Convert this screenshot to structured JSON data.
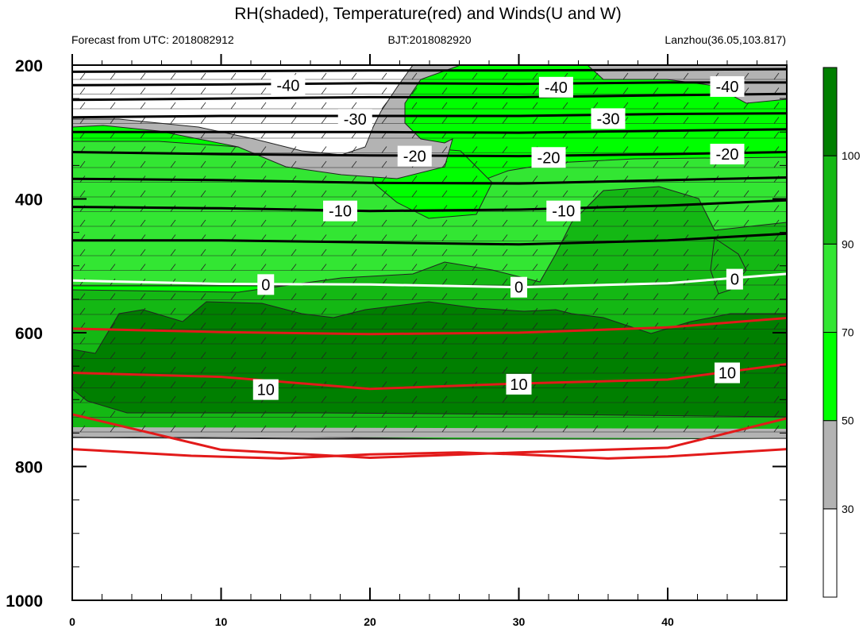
{
  "chart_data": {
    "type": "contour",
    "title": "RH(shaded), Temperature(red) and Winds(U and W)",
    "subtitle_left": "Forecast from UTC: 2018082912",
    "subtitle_center": "BJT:2018082920",
    "subtitle_right": "Lanzhou(36.05,103.817)",
    "x_range": [
      0,
      48
    ],
    "x_ticks": [
      0,
      10,
      20,
      30,
      40
    ],
    "y_range": [
      200,
      1000
    ],
    "y_ticks": [
      200,
      400,
      600,
      800,
      1000
    ],
    "y_reversed": true,
    "colorbar": {
      "levels": [
        30,
        50,
        70,
        90,
        100
      ],
      "labels": [
        "30",
        "50",
        "70",
        "90",
        "100"
      ],
      "colors": [
        "#ffffff",
        "#b3b3b3",
        "#00ff00",
        "#33e633",
        "#14b814",
        "#007f00"
      ]
    },
    "temperature_contours": [
      {
        "value": -40,
        "label": "-40",
        "color": "#000000",
        "y_points": [
          [
            0,
            210
          ],
          [
            10,
            209
          ],
          [
            20,
            208
          ],
          [
            30,
            208
          ],
          [
            40,
            207
          ],
          [
            48,
            206
          ]
        ]
      },
      {
        "value": -40,
        "label": "-40",
        "color": "#000000",
        "y_points": [
          [
            0,
            230
          ],
          [
            10,
            229
          ],
          [
            20,
            227
          ],
          [
            30,
            228
          ],
          [
            40,
            226
          ],
          [
            48,
            226
          ]
        ]
      },
      {
        "value": -40,
        "label": "-40",
        "color": "#000000",
        "y_points": [
          [
            0,
            252
          ],
          [
            10,
            250
          ],
          [
            20,
            248
          ],
          [
            30,
            248
          ],
          [
            40,
            245
          ],
          [
            48,
            243
          ]
        ]
      },
      {
        "value": -30,
        "label": "-30",
        "color": "#000000",
        "y_points": [
          [
            0,
            278
          ],
          [
            10,
            276
          ],
          [
            20,
            276
          ],
          [
            30,
            276
          ],
          [
            40,
            273
          ],
          [
            48,
            272
          ]
        ]
      },
      {
        "value": -30,
        "label": "-30",
        "color": "#000000",
        "y_points": [
          [
            0,
            300
          ],
          [
            10,
            300
          ],
          [
            20,
            300
          ],
          [
            30,
            301
          ],
          [
            40,
            298
          ],
          [
            48,
            296
          ]
        ]
      },
      {
        "value": -20,
        "label": "-20",
        "color": "#000000",
        "y_points": [
          [
            0,
            330
          ],
          [
            10,
            333
          ],
          [
            20,
            335
          ],
          [
            30,
            336
          ],
          [
            40,
            333
          ],
          [
            48,
            330
          ]
        ]
      },
      {
        "value": -20,
        "label": "-20",
        "color": "#000000",
        "y_points": [
          [
            0,
            370
          ],
          [
            10,
            372
          ],
          [
            20,
            376
          ],
          [
            30,
            377
          ],
          [
            40,
            372
          ],
          [
            48,
            368
          ]
        ]
      },
      {
        "value": -10,
        "label": "-10",
        "color": "#000000",
        "y_points": [
          [
            0,
            412
          ],
          [
            10,
            414
          ],
          [
            20,
            418
          ],
          [
            30,
            416
          ],
          [
            40,
            410
          ],
          [
            48,
            402
          ]
        ]
      },
      {
        "value": -10,
        "label": "-10",
        "color": "#000000",
        "y_points": [
          [
            0,
            462
          ],
          [
            10,
            462
          ],
          [
            20,
            465
          ],
          [
            30,
            468
          ],
          [
            40,
            462
          ],
          [
            48,
            452
          ]
        ]
      },
      {
        "value": 0,
        "label": "0",
        "color": "#ffffff",
        "y_points": [
          [
            0,
            522
          ],
          [
            10,
            527
          ],
          [
            20,
            528
          ],
          [
            30,
            532
          ],
          [
            40,
            526
          ],
          [
            48,
            512
          ]
        ]
      },
      {
        "value": 10,
        "label": "10",
        "color": "#e21a1a",
        "y_points": [
          [
            0,
            594
          ],
          [
            10,
            599
          ],
          [
            20,
            602
          ],
          [
            30,
            600
          ],
          [
            40,
            592
          ],
          [
            48,
            578
          ]
        ]
      },
      {
        "value": 10,
        "label": "10",
        "color": "#e21a1a",
        "y_points": [
          [
            0,
            660
          ],
          [
            10,
            666
          ],
          [
            20,
            684
          ],
          [
            30,
            676
          ],
          [
            40,
            670
          ],
          [
            48,
            647
          ]
        ]
      },
      {
        "value": 10,
        "label": "10",
        "color": "#e21a1a",
        "y_points": [
          [
            0,
            722
          ],
          [
            10,
            775
          ],
          [
            20,
            787
          ],
          [
            30,
            779
          ],
          [
            40,
            772
          ],
          [
            48,
            728
          ]
        ]
      },
      {
        "value": 10,
        "label": "10",
        "color": "#e21a1a",
        "y_points": [
          [
            0,
            774
          ],
          [
            8,
            784
          ],
          [
            14,
            788
          ],
          [
            20,
            782
          ],
          [
            26,
            779
          ],
          [
            30,
            782
          ],
          [
            36,
            788
          ],
          [
            40,
            785
          ],
          [
            48,
            774
          ]
        ]
      }
    ],
    "contour_labels": [
      {
        "text": "-40",
        "x": 14.5,
        "y": 230
      },
      {
        "text": "-40",
        "x": 32.5,
        "y": 233
      },
      {
        "text": "-40",
        "x": 44.0,
        "y": 232
      },
      {
        "text": "-30",
        "x": 19.0,
        "y": 281
      },
      {
        "text": "-30",
        "x": 36.0,
        "y": 280
      },
      {
        "text": "-20",
        "x": 23.0,
        "y": 336
      },
      {
        "text": "-20",
        "x": 32.0,
        "y": 338
      },
      {
        "text": "-20",
        "x": 44.0,
        "y": 333
      },
      {
        "text": "-10",
        "x": 18.0,
        "y": 418
      },
      {
        "text": "-10",
        "x": 33.0,
        "y": 418
      },
      {
        "text": "0",
        "x": 13.0,
        "y": 528
      },
      {
        "text": "0",
        "x": 30.0,
        "y": 532
      },
      {
        "text": "0",
        "x": 44.5,
        "y": 520
      },
      {
        "text": "10",
        "x": 13.0,
        "y": 685
      },
      {
        "text": "10",
        "x": 30.0,
        "y": 677
      },
      {
        "text": "10",
        "x": 44.0,
        "y": 660
      }
    ]
  }
}
